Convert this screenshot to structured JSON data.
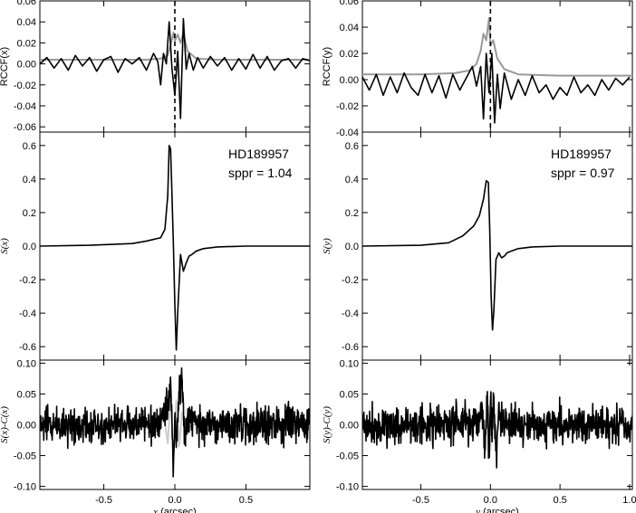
{
  "chart_data": [
    {
      "type": "line",
      "column": "x",
      "row": "rccf",
      "ylabel": "RCCF(x)",
      "xlim": [
        -0.95,
        0.95
      ],
      "ylim": [
        -0.065,
        0.06
      ],
      "yticks": [
        0.06,
        0.04,
        0.02,
        0.0,
        -0.02,
        -0.04,
        -0.06
      ],
      "ytick_labels": [
        "0.06",
        "0.04",
        "0.02",
        "0.00",
        "-0.02",
        "-0.04",
        "-0.06"
      ],
      "xticks": [
        -0.5,
        0.0,
        0.5
      ],
      "xtick_labels": [],
      "vline_x": 0.0,
      "grid": false,
      "series": [
        {
          "color": "#999999",
          "x": [
            -0.95,
            -0.5,
            -0.2,
            -0.1,
            -0.05,
            -0.03,
            -0.01,
            0.0,
            0.02,
            0.04,
            0.06,
            0.09,
            0.15,
            0.3,
            0.6,
            0.95
          ],
          "y": [
            0.004,
            0.004,
            0.004,
            0.005,
            0.008,
            0.018,
            0.03,
            0.022,
            0.028,
            0.02,
            0.029,
            0.012,
            0.005,
            0.004,
            0.004,
            0.004
          ]
        },
        {
          "color": "#000000",
          "x": [
            -0.95,
            -0.9,
            -0.85,
            -0.8,
            -0.75,
            -0.7,
            -0.65,
            -0.6,
            -0.55,
            -0.5,
            -0.45,
            -0.4,
            -0.35,
            -0.3,
            -0.25,
            -0.2,
            -0.15,
            -0.12,
            -0.1,
            -0.08,
            -0.06,
            -0.04,
            -0.02,
            0.0,
            0.02,
            0.04,
            0.06,
            0.08,
            0.1,
            0.13,
            0.16,
            0.2,
            0.25,
            0.3,
            0.35,
            0.4,
            0.45,
            0.5,
            0.55,
            0.6,
            0.65,
            0.7,
            0.75,
            0.8,
            0.85,
            0.9,
            0.95
          ],
          "y": [
            0.0,
            0.006,
            -0.004,
            0.005,
            -0.006,
            0.008,
            -0.002,
            0.006,
            -0.007,
            0.004,
            0.007,
            -0.008,
            0.005,
            0.0,
            0.006,
            -0.006,
            0.01,
            0.002,
            -0.02,
            0.01,
            0.0,
            0.04,
            -0.005,
            -0.03,
            0.012,
            -0.052,
            0.043,
            -0.005,
            0.01,
            -0.006,
            0.006,
            -0.004,
            0.007,
            -0.002,
            0.006,
            -0.006,
            0.005,
            -0.005,
            0.009,
            -0.004,
            0.007,
            -0.006,
            0.003,
            0.005,
            -0.004,
            0.005,
            0.003
          ]
        }
      ]
    },
    {
      "type": "line",
      "column": "y",
      "row": "rccf",
      "ylabel": "RCCF(y)",
      "xlim": [
        -0.92,
        1.02
      ],
      "ylim": [
        -0.04,
        0.06
      ],
      "yticks": [
        0.06,
        0.04,
        0.02,
        0.0,
        -0.02,
        -0.04
      ],
      "ytick_labels": [
        "0.06",
        "0.04",
        "0.02",
        "0.00",
        "-0.02",
        "-0.04"
      ],
      "xticks": [
        -0.5,
        0.0,
        0.5,
        1.0
      ],
      "xtick_labels": [],
      "vline_x": 0.0,
      "grid": false,
      "series": [
        {
          "color": "#999999",
          "x": [
            -0.92,
            -0.5,
            -0.25,
            -0.15,
            -0.1,
            -0.07,
            -0.05,
            -0.03,
            -0.01,
            0.0,
            0.02,
            0.05,
            0.1,
            0.2,
            0.5,
            1.02
          ],
          "y": [
            0.004,
            0.004,
            0.005,
            0.007,
            0.012,
            0.022,
            0.035,
            0.03,
            0.047,
            0.026,
            0.03,
            0.016,
            0.008,
            0.004,
            0.003,
            0.003
          ]
        },
        {
          "color": "#000000",
          "x": [
            -0.92,
            -0.87,
            -0.82,
            -0.77,
            -0.72,
            -0.67,
            -0.62,
            -0.57,
            -0.52,
            -0.47,
            -0.42,
            -0.37,
            -0.32,
            -0.27,
            -0.22,
            -0.17,
            -0.13,
            -0.1,
            -0.07,
            -0.05,
            -0.03,
            -0.01,
            0.01,
            0.03,
            0.05,
            0.07,
            0.1,
            0.15,
            0.2,
            0.25,
            0.3,
            0.35,
            0.4,
            0.45,
            0.5,
            0.55,
            0.6,
            0.65,
            0.7,
            0.75,
            0.8,
            0.85,
            0.9,
            0.95,
            1.0
          ],
          "y": [
            0.002,
            -0.008,
            0.004,
            -0.012,
            0.002,
            -0.01,
            0.005,
            -0.006,
            -0.012,
            0.004,
            -0.01,
            0.003,
            -0.014,
            0.004,
            -0.008,
            0.002,
            0.01,
            -0.005,
            0.01,
            -0.03,
            0.02,
            -0.01,
            0.02,
            -0.033,
            0.004,
            -0.022,
            0.005,
            -0.015,
            0.0,
            -0.012,
            0.003,
            -0.01,
            -0.004,
            -0.015,
            -0.006,
            -0.012,
            0.002,
            -0.01,
            -0.004,
            -0.012,
            0.0,
            -0.008,
            0.001,
            -0.004,
            0.002
          ]
        }
      ]
    },
    {
      "type": "line",
      "column": "x",
      "row": "signal",
      "ylabel": "S(x)",
      "xlim": [
        -0.95,
        0.95
      ],
      "ylim": [
        -0.68,
        0.68
      ],
      "yticks": [
        0.6,
        0.4,
        0.2,
        0.0,
        -0.2,
        -0.4,
        -0.6
      ],
      "ytick_labels": [
        "0.6",
        "0.4",
        "0.2",
        "0.0",
        "-0.2",
        "-0.4",
        "-0.6"
      ],
      "xticks": [
        -0.5,
        0.0,
        0.5
      ],
      "xtick_labels": [],
      "annotation": {
        "star": "HD189957",
        "sppr": "sppr = 1.04"
      },
      "series": [
        {
          "color": "#000000",
          "x": [
            -0.95,
            -0.6,
            -0.3,
            -0.2,
            -0.1,
            -0.07,
            -0.05,
            -0.04,
            -0.03,
            -0.02,
            -0.01,
            0.0,
            0.01,
            0.02,
            0.04,
            0.06,
            0.08,
            0.1,
            0.12,
            0.15,
            0.2,
            0.3,
            0.5,
            0.95
          ],
          "y": [
            0.0,
            0.005,
            0.015,
            0.03,
            0.05,
            0.1,
            0.3,
            0.6,
            0.58,
            0.3,
            0.0,
            -0.35,
            -0.62,
            -0.4,
            -0.05,
            -0.15,
            -0.1,
            -0.06,
            -0.05,
            -0.03,
            -0.015,
            -0.005,
            0.0,
            0.0
          ]
        }
      ]
    },
    {
      "type": "line",
      "column": "y",
      "row": "signal",
      "ylabel": "S(y)",
      "xlim": [
        -0.92,
        1.02
      ],
      "ylim": [
        -0.68,
        0.68
      ],
      "yticks": [
        0.6,
        0.4,
        0.2,
        0.0,
        -0.2,
        -0.4,
        -0.6
      ],
      "ytick_labels": [
        "0.6",
        "0.4",
        "0.2",
        "0.0",
        "-0.2",
        "-0.4",
        "-0.6"
      ],
      "xticks": [
        -0.5,
        0.0,
        0.5,
        1.0
      ],
      "xtick_labels": [],
      "annotation": {
        "star": "HD189957",
        "sppr": "sppr = 0.97"
      },
      "series": [
        {
          "color": "#000000",
          "x": [
            -0.92,
            -0.5,
            -0.3,
            -0.2,
            -0.12,
            -0.08,
            -0.05,
            -0.03,
            -0.015,
            -0.005,
            0.005,
            0.015,
            0.025,
            0.04,
            0.06,
            0.08,
            0.1,
            0.12,
            0.15,
            0.2,
            0.3,
            0.5,
            1.02
          ],
          "y": [
            0.0,
            0.005,
            0.02,
            0.06,
            0.12,
            0.18,
            0.28,
            0.39,
            0.38,
            0.1,
            -0.3,
            -0.5,
            -0.38,
            -0.08,
            -0.04,
            -0.07,
            -0.06,
            -0.04,
            -0.03,
            -0.015,
            -0.005,
            0.0,
            0.0
          ]
        }
      ]
    },
    {
      "type": "line",
      "column": "x",
      "row": "residual",
      "ylabel": "S(x)-C(x)",
      "xlabel_var": "x",
      "xlabel_unit": " (arcsec)",
      "xlim": [
        -0.95,
        0.95
      ],
      "ylim": [
        -0.105,
        0.105
      ],
      "yticks": [
        0.1,
        0.05,
        0.0,
        -0.05,
        -0.1
      ],
      "ytick_labels": [
        "0.10",
        "0.05",
        "0.00",
        "-0.05",
        "-0.10"
      ],
      "xticks": [
        -0.5,
        0.0,
        0.5
      ],
      "xtick_labels": [
        "-0.5",
        "0.0",
        "0.5"
      ],
      "noise_amplitude": 0.022,
      "series": [
        {
          "color": "#cccccc",
          "x": [
            -0.95,
            -0.12,
            -0.08,
            -0.05,
            -0.03,
            -0.01,
            0.01,
            0.03,
            0.05,
            0.08,
            0.12,
            0.95
          ],
          "y": [
            0.0,
            0.0,
            0.02,
            -0.03,
            0.045,
            -0.05,
            0.04,
            -0.035,
            0.02,
            -0.01,
            0.0,
            0.0
          ]
        },
        {
          "color": "#000000",
          "x": [
            -0.95,
            -0.12,
            -0.07,
            -0.04,
            -0.025,
            -0.01,
            0.0,
            0.01,
            0.03,
            0.05,
            0.07,
            0.1,
            0.13,
            0.95
          ],
          "y": [
            0.0,
            0.0,
            0.02,
            0.05,
            0.06,
            -0.075,
            0.01,
            -0.04,
            0.055,
            0.072,
            -0.03,
            0.02,
            0.0,
            0.0
          ]
        }
      ]
    },
    {
      "type": "line",
      "column": "y",
      "row": "residual",
      "ylabel": "S(y)-C(y)",
      "xlabel_var": "y",
      "xlabel_unit": " (arcsec)",
      "xlim": [
        -0.92,
        1.02
      ],
      "ylim": [
        -0.105,
        0.105
      ],
      "yticks": [
        0.1,
        0.05,
        0.0,
        -0.05,
        -0.1
      ],
      "ytick_labels": [
        "0.10",
        "0.05",
        "0.00",
        "-0.05",
        "-0.10"
      ],
      "xticks": [
        -0.5,
        0.0,
        0.5,
        1.0
      ],
      "xtick_labels": [
        "-0.5",
        "0.0",
        "0.5",
        "1.0"
      ],
      "noise_amplitude": 0.024,
      "series": [
        {
          "color": "#cccccc",
          "x": [
            -0.92,
            -0.1,
            -0.06,
            -0.04,
            -0.02,
            0.0,
            0.02,
            0.04,
            0.06,
            0.1,
            1.02
          ],
          "y": [
            0.0,
            0.0,
            0.02,
            -0.025,
            0.035,
            -0.04,
            0.03,
            -0.02,
            0.01,
            0.0,
            0.0
          ]
        },
        {
          "color": "#000000",
          "x": [
            -0.92,
            -0.1,
            -0.06,
            -0.04,
            -0.02,
            -0.01,
            0.0,
            0.01,
            0.02,
            0.04,
            0.06,
            0.1,
            1.02
          ],
          "y": [
            0.0,
            0.0,
            0.03,
            -0.04,
            0.05,
            -0.085,
            0.062,
            -0.03,
            0.058,
            -0.05,
            0.02,
            0.0,
            0.0
          ]
        }
      ]
    }
  ]
}
